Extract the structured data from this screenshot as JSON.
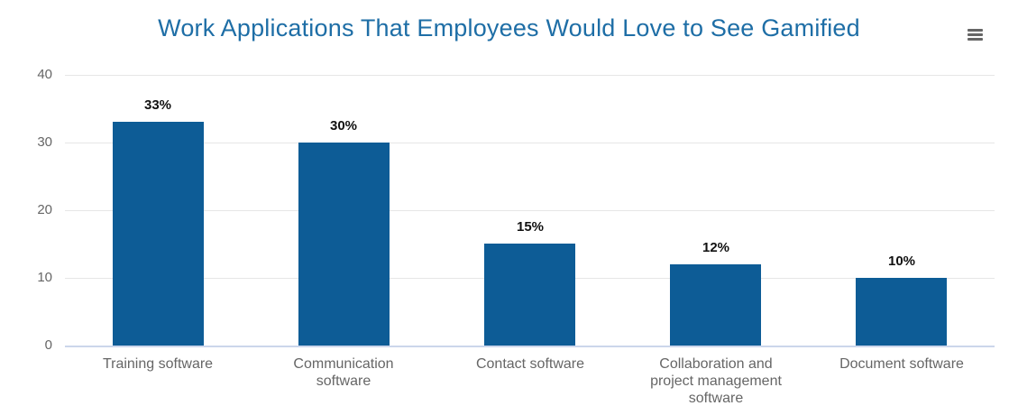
{
  "header": {
    "menu_icon": "hamburger-menu-icon"
  },
  "colors": {
    "bar_fill": "#0d5c96",
    "title_text": "#1e6ea6",
    "axis_text": "#666666",
    "value_label_text": "#111111",
    "gridline": "#e6e6e6",
    "axis_line": "#ccd6eb",
    "background": "#ffffff",
    "menu_icon": "#666666"
  },
  "chart_data": {
    "type": "bar",
    "title": "Work Applications That Employees Would Love to See Gamified",
    "categories": [
      "Training software",
      "Communication software",
      "Contact software",
      "Collaboration and project management software",
      "Document software"
    ],
    "values": [
      33,
      30,
      15,
      12,
      10
    ],
    "data_labels": [
      "33%",
      "30%",
      "15%",
      "12%",
      "10%"
    ],
    "xlabel": "",
    "ylabel": "",
    "ylim": [
      0,
      40
    ],
    "yticks": [
      0,
      10,
      20,
      30,
      40
    ],
    "grid": true,
    "legend": "none"
  }
}
